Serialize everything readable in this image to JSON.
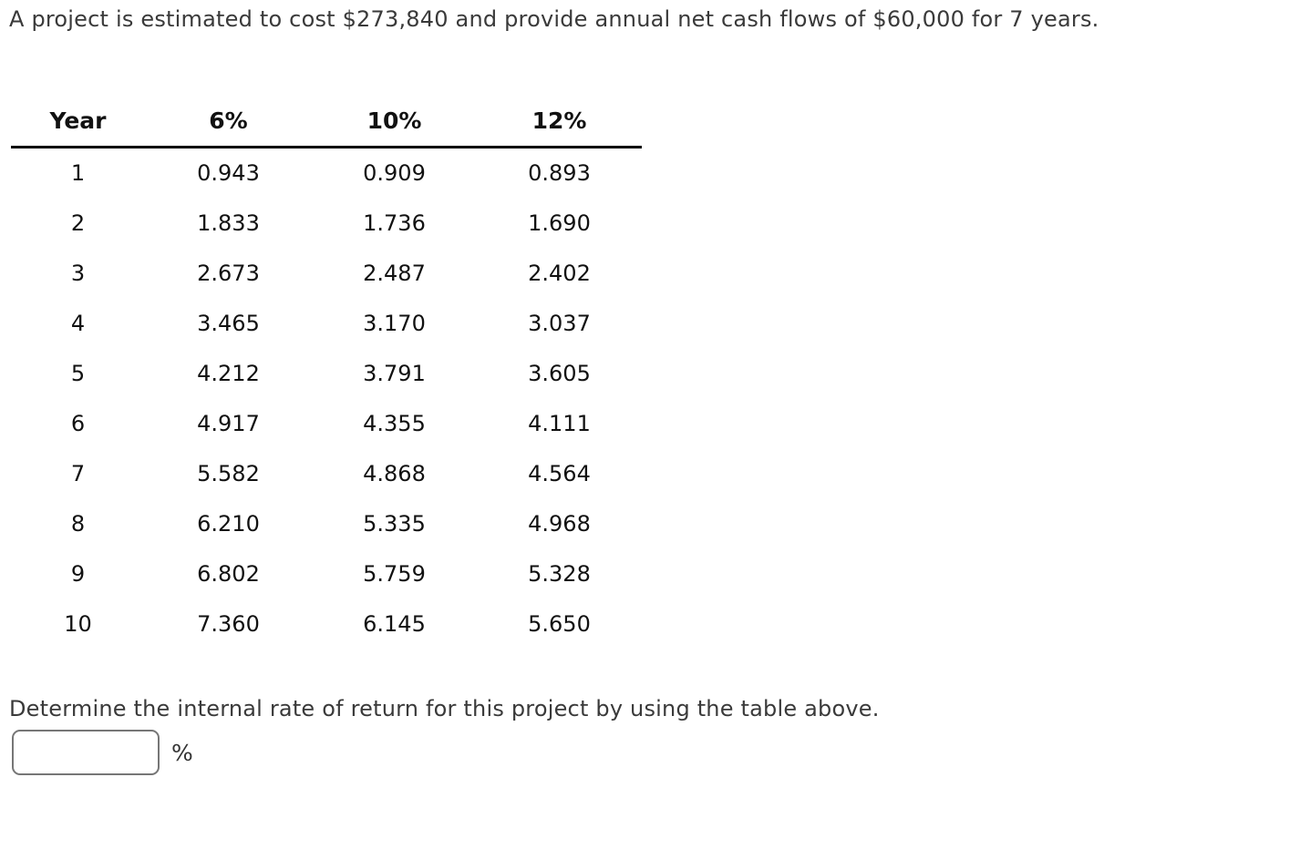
{
  "question": {
    "intro": "A project is estimated to cost $273,840 and provide annual net cash flows of $60,000 for 7 years.",
    "prompt": "Determine the internal rate of return for this project by using the table above.",
    "answer_value": "",
    "answer_unit": "%"
  },
  "table": {
    "headers": [
      "Year",
      "6%",
      "10%",
      "12%"
    ],
    "rows": [
      [
        "1",
        "0.943",
        "0.909",
        "0.893"
      ],
      [
        "2",
        "1.833",
        "1.736",
        "1.690"
      ],
      [
        "3",
        "2.673",
        "2.487",
        "2.402"
      ],
      [
        "4",
        "3.465",
        "3.170",
        "3.037"
      ],
      [
        "5",
        "4.212",
        "3.791",
        "3.605"
      ],
      [
        "6",
        "4.917",
        "4.355",
        "4.111"
      ],
      [
        "7",
        "5.582",
        "4.868",
        "4.564"
      ],
      [
        "8",
        "6.210",
        "5.335",
        "4.968"
      ],
      [
        "9",
        "6.802",
        "5.759",
        "5.328"
      ],
      [
        "10",
        "7.360",
        "6.145",
        "5.650"
      ]
    ]
  },
  "colors": {
    "body_text": "#3a3a3a",
    "table_text": "#111111",
    "table_rule": "#000000",
    "input_border": "#767676",
    "background": "#ffffff"
  }
}
